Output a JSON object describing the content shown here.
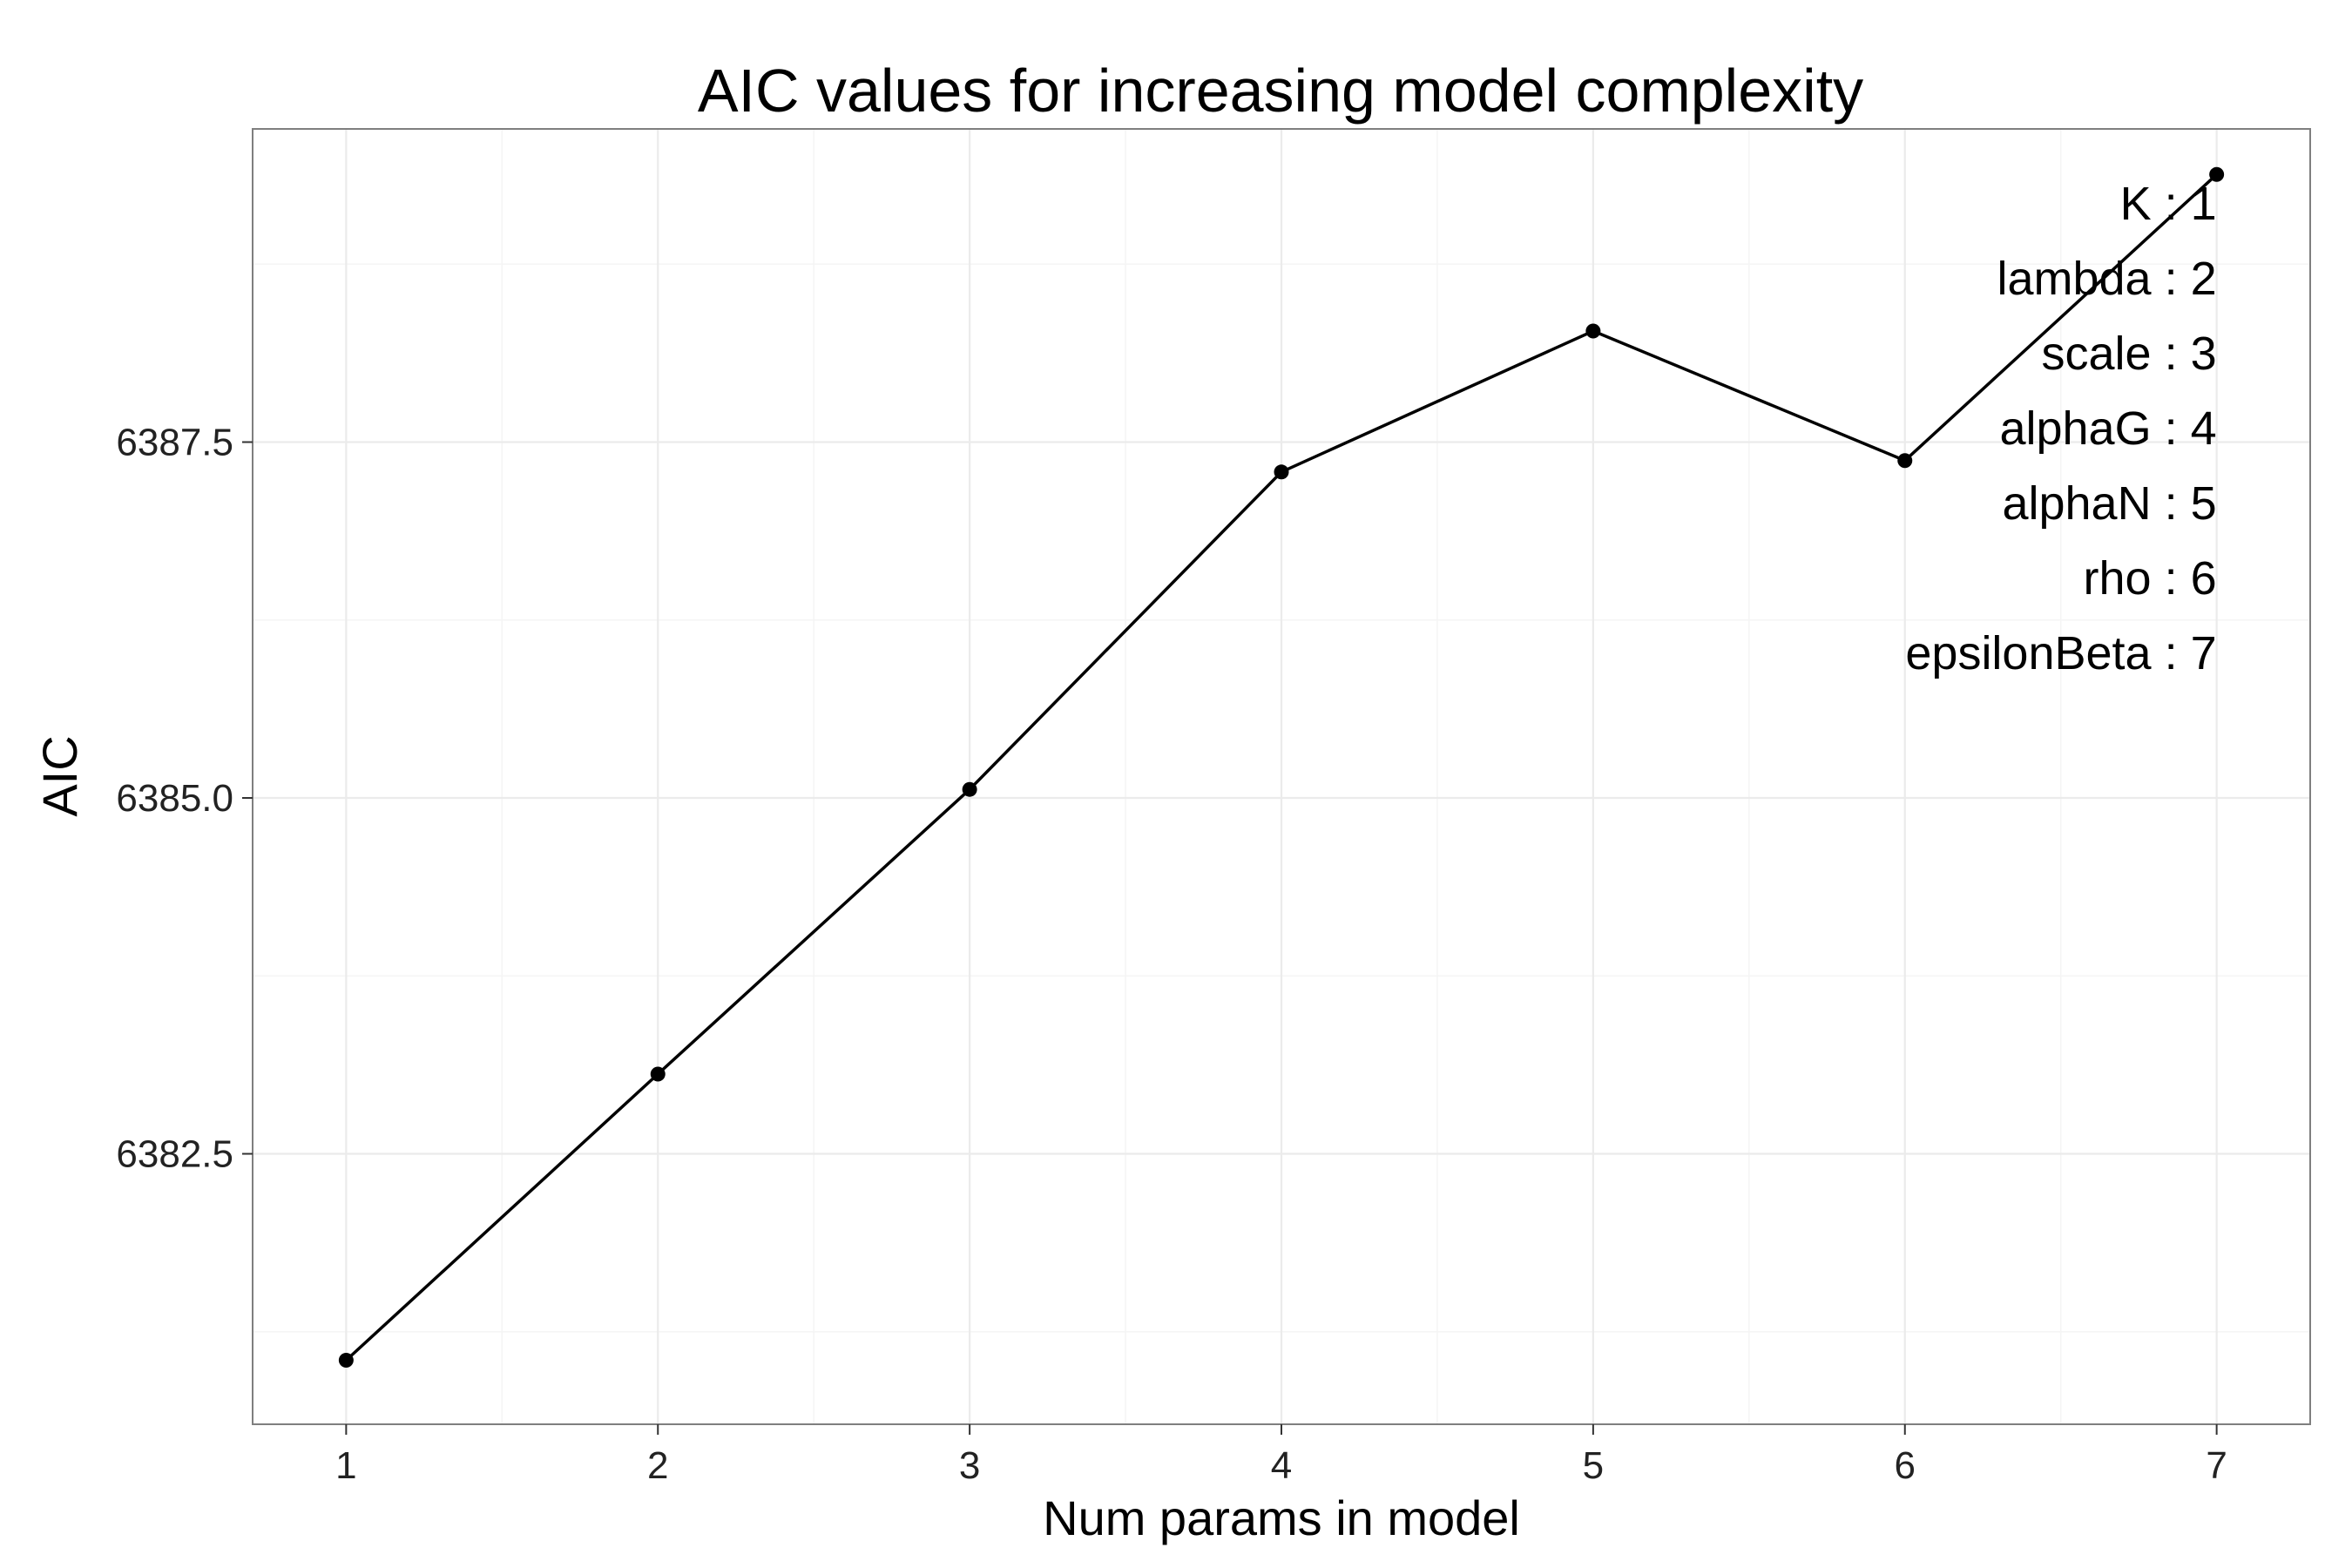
{
  "chart_data": {
    "type": "line",
    "title": "AIC values for increasing model complexity",
    "xlabel": "Num params in model",
    "ylabel": "AIC",
    "x": [
      1,
      2,
      3,
      4,
      5,
      6,
      7
    ],
    "series": [
      {
        "values": [
          6381.05,
          6383.06,
          6385.06,
          6387.29,
          6388.28,
          6387.37,
          6389.38
        ]
      }
    ],
    "xticks": [
      1,
      2,
      3,
      4,
      5,
      6,
      7
    ],
    "xtick_labels": [
      "1",
      "2",
      "3",
      "4",
      "5",
      "6",
      "7"
    ],
    "yticks": [
      6382.5,
      6385.0,
      6387.5
    ],
    "ytick_labels": [
      "6382.5",
      "6385.0",
      "6387.5"
    ],
    "xlim": [
      0.7,
      7.3
    ],
    "ylim": [
      6380.6,
      6389.7
    ],
    "grid": true,
    "annotations": [
      "K : 1",
      "lambda : 2",
      "scale : 3",
      "alphaG : 4",
      "alphaN : 5",
      "rho : 6",
      "epsilonBeta : 7"
    ],
    "annotation_placement": "top-right",
    "colors": {
      "line": "#000000",
      "point": "#000000",
      "panel_border": "#7f7f7f",
      "grid": "#ebebeb"
    }
  }
}
